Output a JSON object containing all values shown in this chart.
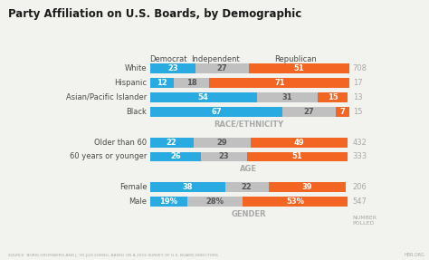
{
  "title": "Party Affiliation on U.S. Boards, by Demographic",
  "source": "SOURCE  BORIS GROYSBERG AND J. YO-JUD CHENG, BASED ON A 2015 SURVEY OF U.S. BOARD DIRECTORS",
  "hbr": "HBR.ORG",
  "number_polled_label": "NUMBER\nPOLLED",
  "section_labels": {
    "gender": "GENDER",
    "age": "AGE",
    "race": "RACE/ETHNICITY"
  },
  "categories": [
    "Male",
    "Female",
    "60 years or younger",
    "Older than 60",
    "Black",
    "Asian/Pacific Islander",
    "Hispanic",
    "White"
  ],
  "democrat": [
    19,
    38,
    26,
    22,
    67,
    54,
    12,
    23
  ],
  "independent": [
    28,
    22,
    23,
    29,
    27,
    31,
    18,
    27
  ],
  "republican": [
    53,
    39,
    51,
    49,
    7,
    15,
    71,
    51
  ],
  "number_polled": [
    547,
    206,
    333,
    432,
    15,
    13,
    17,
    708
  ],
  "label_pct": [
    "19%",
    "28%",
    "53%"
  ],
  "colors": {
    "democrat": "#29ABE2",
    "independent": "#C0C0C0",
    "republican": "#F26522"
  },
  "section_label_color": "#A8A8A8",
  "axis_label_color": "#4A4A4A",
  "title_color": "#1A1A1A",
  "bg_color": "#F2F2EE",
  "bar_height": 0.55
}
